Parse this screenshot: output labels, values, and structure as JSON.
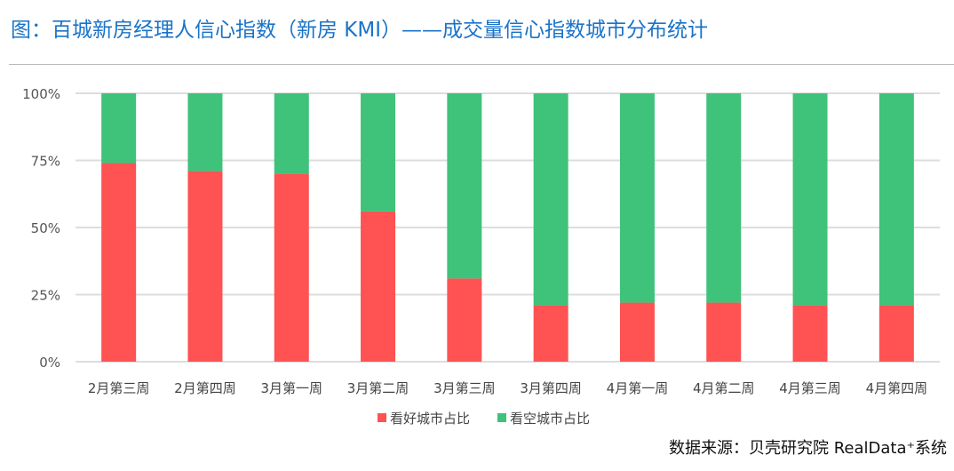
{
  "title": "图：百城新房经理人信心指数（新房 KMI）——成交量信心指数城市分布统计",
  "source": "数据来源：贝壳研究院 RealData⁺系统",
  "chart_data": {
    "type": "bar",
    "stacked": true,
    "categories": [
      "2月第三周",
      "2月第四周",
      "3月第一周",
      "3月第二周",
      "3月第三周",
      "3月第四周",
      "4月第一周",
      "4月第二周",
      "4月第三周",
      "4月第四周"
    ],
    "series": [
      {
        "name": "看好城市占比",
        "color": "#ff5252",
        "values": [
          74,
          71,
          70,
          56,
          31,
          21,
          22,
          22,
          21,
          21
        ]
      },
      {
        "name": "看空城市占比",
        "color": "#3fc27a",
        "values": [
          26,
          29,
          30,
          44,
          69,
          79,
          78,
          78,
          79,
          79
        ]
      }
    ],
    "yticks": [
      "0%",
      "25%",
      "50%",
      "75%",
      "100%"
    ],
    "ylim": [
      0,
      100
    ],
    "grid": true,
    "legend": "bottom"
  }
}
